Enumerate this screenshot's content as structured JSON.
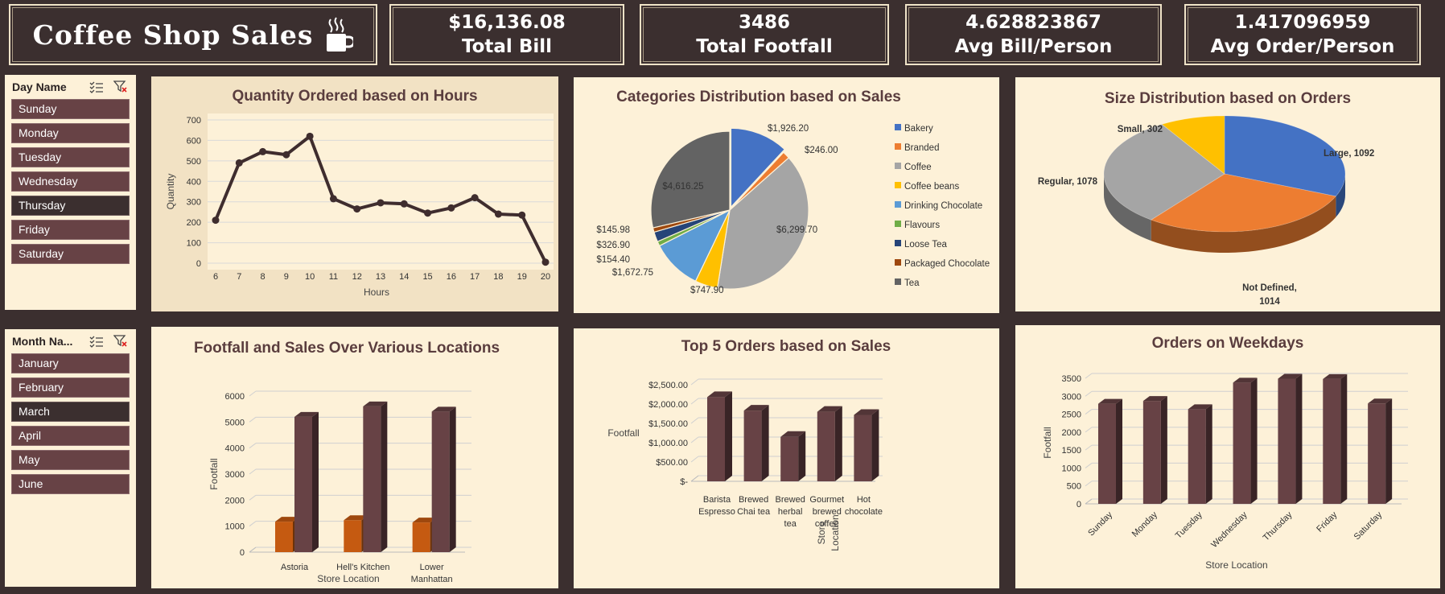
{
  "header": {
    "title": "Coffee Shop Sales",
    "cup_icon": "coffee-cup-icon",
    "kpis": [
      {
        "value": "$16,136.08",
        "label": "Total Bill"
      },
      {
        "value": "3486",
        "label": "Total Footfall"
      },
      {
        "value": "4.628823867",
        "label": "Avg Bill/Person"
      },
      {
        "value": "1.417096959",
        "label": "Avg Order/Person"
      }
    ]
  },
  "slicers": {
    "day": {
      "title": "Day Name",
      "items": [
        "Sunday",
        "Monday",
        "Tuesday",
        "Wednesday",
        "Thursday",
        "Friday",
        "Saturday"
      ],
      "selected": "Thursday"
    },
    "month": {
      "title": "Month Na...",
      "items": [
        "January",
        "February",
        "March",
        "April",
        "May",
        "June"
      ],
      "selected": "March"
    }
  },
  "colors": {
    "brown": "#674245",
    "orange": "#c55a11",
    "panel": "#fdf1d8",
    "bg": "#3b2f2f"
  },
  "chart_data": [
    {
      "id": "hours",
      "type": "line",
      "title": "Quantity Ordered based on Hours",
      "xlabel": "Hours",
      "ylabel": "Quantity",
      "x": [
        6,
        7,
        8,
        9,
        10,
        11,
        12,
        13,
        14,
        15,
        16,
        17,
        18,
        19,
        20
      ],
      "values": [
        210,
        490,
        545,
        530,
        620,
        315,
        265,
        295,
        290,
        245,
        270,
        320,
        240,
        235,
        5
      ],
      "ylim": [
        0,
        700
      ],
      "yticks": [
        "0",
        "100",
        "200",
        "300",
        "400",
        "500",
        "600",
        "700"
      ],
      "grid": true
    },
    {
      "id": "categories",
      "type": "pie",
      "title": "Categories Distribution based on Sales",
      "labels": [
        "Bakery",
        "Branded",
        "Coffee",
        "Coffee beans",
        "Drinking Chocolate",
        "Flavours",
        "Loose Tea",
        "Packaged Chocolate",
        "Tea"
      ],
      "values": [
        1926.2,
        246.0,
        6299.7,
        747.9,
        1672.75,
        154.4,
        326.9,
        145.98,
        4616.25
      ],
      "data_labels": [
        "$1,926.20",
        "$246.00",
        "$6,299.70",
        "$747.90",
        "$1,672.75",
        "$154.40",
        "$326.90",
        "$145.98",
        "$4,616.25"
      ],
      "colors": [
        "#4472c4",
        "#ed7d31",
        "#a5a5a5",
        "#ffc000",
        "#5b9bd5",
        "#70ad47",
        "#264478",
        "#9e480e",
        "#636363"
      ],
      "legend": "right"
    },
    {
      "id": "sizes",
      "type": "pie",
      "title": "Size Distribution based on Orders",
      "labels": [
        "Large",
        "Not Defined",
        "Regular",
        "Small"
      ],
      "values": [
        1092,
        1014,
        1078,
        302
      ],
      "data_labels": [
        "Large, 1092",
        "Not Defined, 1014",
        "Regular, 1078",
        "Small, 302"
      ],
      "colors": [
        "#4472c4",
        "#ed7d31",
        "#a5a5a5",
        "#ffc000"
      ]
    },
    {
      "id": "locations",
      "type": "bar",
      "title": "Footfall and Sales Over Various Locations",
      "xlabel": "Store Location",
      "ylabel": "Footfall",
      "categories": [
        "Astoria",
        "Hell's Kitchen",
        "Lower Manhattan"
      ],
      "series": [
        {
          "values": [
            1170,
            1230,
            1140
          ]
        },
        {
          "values": [
            5200,
            5600,
            5400
          ]
        }
      ],
      "ylim": [
        0,
        6000
      ],
      "yticks": [
        "0",
        "1000",
        "2000",
        "3000",
        "4000",
        "5000",
        "6000"
      ]
    },
    {
      "id": "top5",
      "type": "bar",
      "title": "Top 5 Orders based on Sales",
      "xlabel": "Store Location",
      "ylabel": "Footfall",
      "categories": [
        "Barista Espresso",
        "Brewed Chai tea",
        "Brewed herbal tea",
        "Gourmet brewed coffee",
        "Hot chocolate"
      ],
      "values": [
        2180,
        1830,
        1150,
        1800,
        1720
      ],
      "ylim": [
        0,
        2500
      ],
      "yticks": [
        "$-",
        "$500.00",
        "$1,000.00",
        "$1,500.00",
        "$2,000.00",
        "$2,500.00"
      ]
    },
    {
      "id": "weekdays",
      "type": "bar",
      "title": "Orders on Weekdays",
      "xlabel": "Store Location",
      "ylabel": "Footfall",
      "categories": [
        "Sunday",
        "Monday",
        "Tuesday",
        "Wednesday",
        "Thursday",
        "Friday",
        "Saturday"
      ],
      "values": [
        2790,
        2870,
        2640,
        3380,
        3490,
        3480,
        2800
      ],
      "ylim": [
        0,
        3500
      ],
      "yticks": [
        "0",
        "500",
        "1000",
        "1500",
        "2000",
        "2500",
        "3000",
        "3500"
      ]
    }
  ]
}
